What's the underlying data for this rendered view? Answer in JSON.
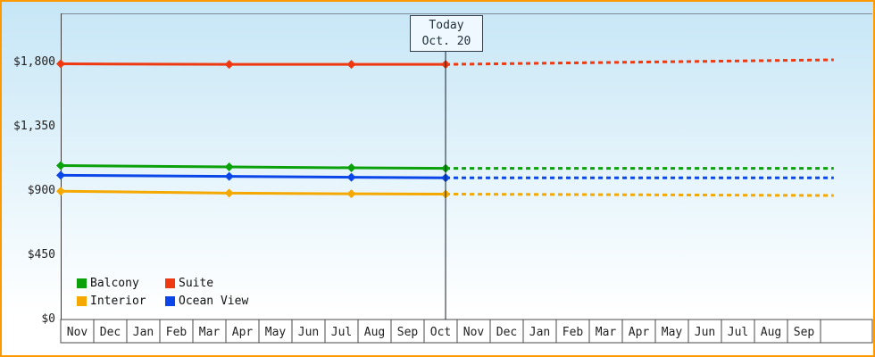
{
  "chart_data": {
    "type": "line",
    "title": "",
    "x_categories": [
      "Nov",
      "Dec",
      "Jan",
      "Feb",
      "Mar",
      "Apr",
      "May",
      "Jun",
      "Jul",
      "Aug",
      "Sep",
      "Oct",
      "Nov",
      "Dec",
      "Jan",
      "Feb",
      "Mar",
      "Apr",
      "May",
      "Jun",
      "Jul",
      "Aug",
      "Sep"
    ],
    "y_ticks": [
      0,
      450,
      900,
      1350,
      1800
    ],
    "y_tick_labels": [
      "$0",
      "$450",
      "$900",
      "$1,350",
      "$1,800"
    ],
    "ylim": [
      0,
      2143
    ],
    "grid": false,
    "legend_position": "bottom-left-inside",
    "today": {
      "line1": "Today",
      "line2": "Oct. 20",
      "x_index": 11.65
    },
    "series": [
      {
        "name": "Interior",
        "color": "#f5a800",
        "history": [
          [
            0,
            898
          ],
          [
            5.1,
            885
          ],
          [
            8.8,
            880
          ],
          [
            11.65,
            878
          ]
        ],
        "forecast": [
          [
            11.65,
            878
          ],
          [
            23.4,
            868
          ]
        ]
      },
      {
        "name": "Ocean View",
        "color": "#0a46e8",
        "history": [
          [
            0,
            1010
          ],
          [
            5.1,
            1002
          ],
          [
            8.8,
            996
          ],
          [
            11.65,
            992
          ]
        ],
        "forecast": [
          [
            11.65,
            992
          ],
          [
            23.4,
            992
          ]
        ]
      },
      {
        "name": "Balcony",
        "color": "#0aa10a",
        "history": [
          [
            0,
            1078
          ],
          [
            5.1,
            1068
          ],
          [
            8.8,
            1062
          ],
          [
            11.65,
            1058
          ]
        ],
        "forecast": [
          [
            11.65,
            1058
          ],
          [
            23.4,
            1058
          ]
        ]
      },
      {
        "name": "Suite",
        "color": "#ee3911",
        "history": [
          [
            0,
            1790
          ],
          [
            5.1,
            1786
          ],
          [
            8.8,
            1786
          ],
          [
            11.65,
            1786
          ]
        ],
        "forecast": [
          [
            11.65,
            1786
          ],
          [
            23.4,
            1818
          ]
        ]
      }
    ],
    "legend": [
      {
        "label": "Balcony",
        "color": "#0aa10a"
      },
      {
        "label": "Suite",
        "color": "#ee3911"
      },
      {
        "label": "Interior",
        "color": "#f5a800"
      },
      {
        "label": "Ocean View",
        "color": "#0a46e8"
      }
    ]
  }
}
